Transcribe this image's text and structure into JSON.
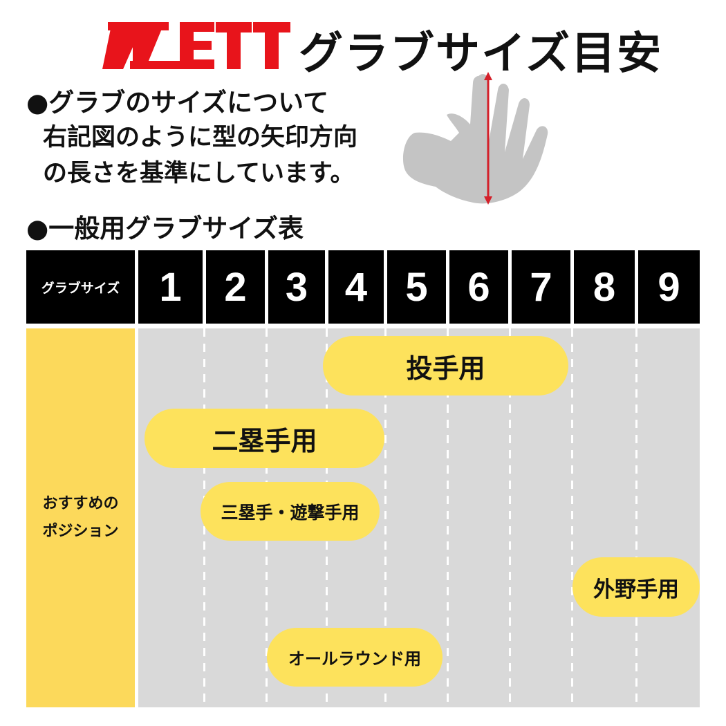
{
  "brand": {
    "logo_text": "ZETT",
    "color": "#e8141b"
  },
  "title": "グラブサイズ目安",
  "about": {
    "heading": "●グラブのサイズについて",
    "lines": [
      "右記図のように型の矢印方向",
      "の長さを基準にしています。"
    ]
  },
  "table_heading": "●一般用グラブサイズ表",
  "table": {
    "header_label": "グラブサイズ",
    "sizes": [
      "1",
      "2",
      "3",
      "4",
      "5",
      "6",
      "7",
      "8",
      "9"
    ],
    "row_label": "おすすめのポジション",
    "row_label_lines": [
      "おすすめの",
      "ポジション"
    ],
    "positions": [
      {
        "label": "投手用",
        "from": 4,
        "to": 7
      },
      {
        "label": "二塁手用",
        "from": 1,
        "to": 4
      },
      {
        "label": "三塁手・遊撃手用",
        "from": 2,
        "to": 4
      },
      {
        "label": "外野手用",
        "from": 8,
        "to": 9
      },
      {
        "label": "オールラウンド用",
        "from": 3,
        "to": 5
      }
    ]
  },
  "colors": {
    "header": "#000000",
    "label_bg": "#fcd95b",
    "pill": "#fde25c",
    "grid_bg": "#d9d9d9",
    "arrow": "#d4202a"
  }
}
